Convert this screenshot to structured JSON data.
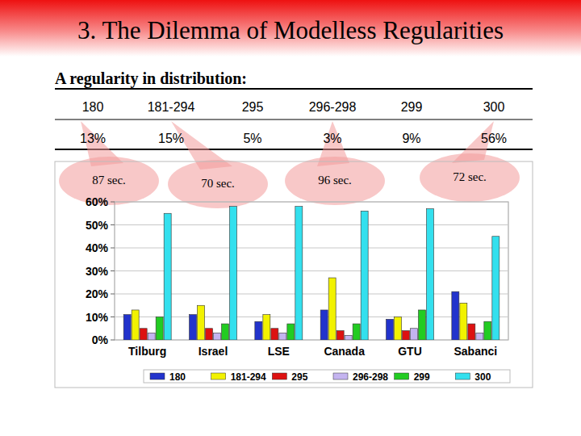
{
  "slide": {
    "title": "3. The Dilemma of Modelless Regularities",
    "subtitle": "A regularity in distribution:",
    "table": {
      "header": [
        "180",
        "181-294",
        "295",
        "296-298",
        "299",
        "300"
      ],
      "row": [
        "13%",
        "15%",
        "5%",
        "3%",
        "9%",
        "56%"
      ]
    },
    "annotations": [
      "87 sec.",
      "70 sec.",
      "96 sec.",
      "72 sec."
    ]
  },
  "chart_data": {
    "type": "bar",
    "categories": [
      "Tilburg",
      "Israel",
      "LSE",
      "Canada",
      "GTU",
      "Sabanci"
    ],
    "series": [
      {
        "name": "180",
        "color": "#2233cc",
        "values": [
          11,
          11,
          8,
          13,
          9,
          21
        ]
      },
      {
        "name": "181-294",
        "color": "#f2f200",
        "values": [
          13,
          15,
          11,
          27,
          10,
          16
        ]
      },
      {
        "name": "295",
        "color": "#dd1111",
        "values": [
          5,
          5,
          5,
          4,
          4,
          7
        ]
      },
      {
        "name": "296-298",
        "color": "#c4b4f0",
        "values": [
          3,
          3,
          3,
          2,
          5,
          3
        ]
      },
      {
        "name": "299",
        "color": "#22cc22",
        "values": [
          10,
          7,
          7,
          7,
          13,
          8
        ]
      },
      {
        "name": "300",
        "color": "#33e0ee",
        "values": [
          55,
          58,
          58,
          56,
          57,
          45
        ]
      }
    ],
    "ylim": [
      0,
      60
    ],
    "yticks": [
      {
        "value": 0,
        "label": "0%"
      },
      {
        "value": 10,
        "label": "10%"
      },
      {
        "value": 20,
        "label": "20%"
      },
      {
        "value": 30,
        "label": "30%"
      },
      {
        "value": 40,
        "label": "40%"
      },
      {
        "value": 50,
        "label": "50%"
      },
      {
        "value": 60,
        "label": "60%"
      }
    ],
    "grid": true,
    "legend": "bottom"
  }
}
